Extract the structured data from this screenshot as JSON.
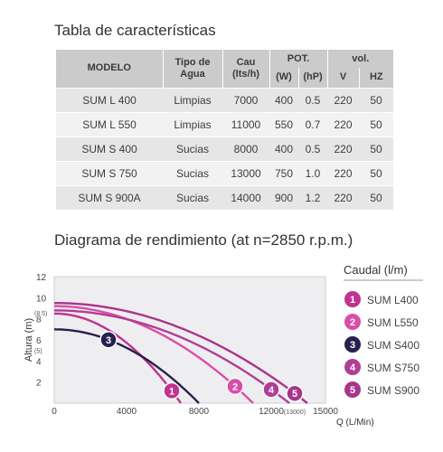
{
  "table": {
    "title": "Tabla de características",
    "headers": {
      "modelo": "MODELO",
      "tipo": "Tipo de Agua",
      "cau": "Cau (lts/h)",
      "pot": "POT.",
      "vol": "vol.",
      "w": "(W)",
      "hp": "(hP)",
      "v": "V",
      "hz": "HZ"
    },
    "rows": [
      {
        "modelo": "SUM L 400",
        "tipo": "Limpias",
        "cau": "7000",
        "w": "400",
        "hp": "0.5",
        "v": "220",
        "hz": "50"
      },
      {
        "modelo": "SUM L 550",
        "tipo": "Limpias",
        "cau": "11000",
        "w": "550",
        "hp": "0.7",
        "v": "220",
        "hz": "50"
      },
      {
        "modelo": "SUM S 400",
        "tipo": "Sucias",
        "cau": "8000",
        "w": "400",
        "hp": "0.5",
        "v": "220",
        "hz": "50"
      },
      {
        "modelo": "SUM S 750",
        "tipo": "Sucias",
        "cau": "13000",
        "w": "750",
        "hp": "1.0",
        "v": "220",
        "hz": "50"
      },
      {
        "modelo": "SUM S 900A",
        "tipo": "Sucias",
        "cau": "14000",
        "w": "900",
        "hp": "1.2",
        "v": "220",
        "hz": "50"
      }
    ]
  },
  "chart_data": {
    "type": "line",
    "title": "Diagrama de rendimiento (at n=2850 r.p.m.)",
    "xlabel": "Q (L/Min)",
    "ylabel": "Altura (m)",
    "xlim": [
      0,
      15000
    ],
    "ylim": [
      0,
      12
    ],
    "xticks": [
      "0",
      "4000",
      "8000",
      "12000",
      "15000"
    ],
    "yticks": [
      "2",
      "4",
      "6",
      "8",
      "10",
      "12"
    ],
    "annotations": {
      "y85": "(8.5)",
      "y5": "(5)",
      "x13000": "(13000)"
    },
    "legend_title": "Caudal (l/m)",
    "legend_position": "right",
    "grid": false,
    "series": [
      {
        "name": "SUM L400",
        "marker": "1",
        "color": "#c0338f",
        "h0": 8.5,
        "qmax": 7000,
        "label_q": 6500
      },
      {
        "name": "SUM L550",
        "marker": "2",
        "color": "#d94fa8",
        "h0": 9.2,
        "qmax": 11000,
        "label_q": 10000
      },
      {
        "name": "SUM S400",
        "marker": "3",
        "color": "#2a1f4d",
        "h0": 7.0,
        "qmax": 8000,
        "label_q": 3000
      },
      {
        "name": "SUM S750",
        "marker": "4",
        "color": "#b13e95",
        "h0": 8.8,
        "qmax": 13000,
        "label_q": 12000
      },
      {
        "name": "SUM S900",
        "marker": "5",
        "color": "#a8358d",
        "h0": 9.5,
        "qmax": 14000,
        "label_q": 13300
      }
    ]
  }
}
